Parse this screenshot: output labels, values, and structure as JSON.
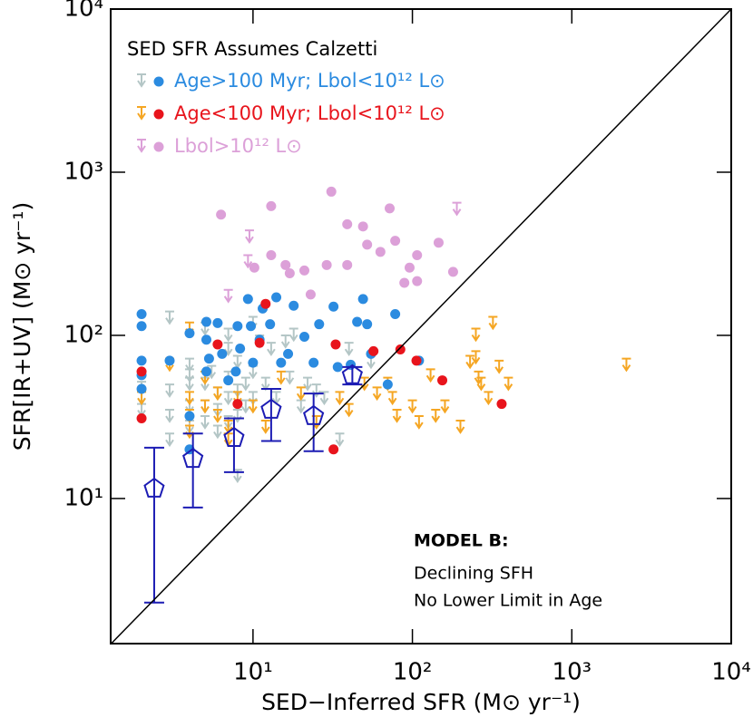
{
  "chart_data": {
    "type": "scatter",
    "log_x": true,
    "log_y": true,
    "one_to_one_line": true,
    "xlabel": "SED−Inferred SFR (M⊙ yr⁻¹)",
    "ylabel": "SFR[IR+UV] (M⊙ yr⁻¹)",
    "xlim": [
      1.28,
      10000
    ],
    "ylim": [
      1.29,
      10000
    ],
    "xticks": [
      {
        "value": 10,
        "label": "10¹"
      },
      {
        "value": 100,
        "label": "10²"
      },
      {
        "value": 1000,
        "label": "10³"
      },
      {
        "value": 10000,
        "label": "10⁴"
      }
    ],
    "yticks": [
      {
        "value": 10,
        "label": "10¹"
      },
      {
        "value": 100,
        "label": "10²"
      },
      {
        "value": 1000,
        "label": "10³"
      },
      {
        "value": 10000,
        "label": "10⁴"
      }
    ],
    "legend_title": "SED SFR Assumes Calzetti",
    "legend_position": "upper left",
    "annotations": [
      "MODEL B:",
      "Declining SFH",
      "No Lower Limit in Age"
    ],
    "series": [
      {
        "name": "Age>100 Myr; Lbol<10¹² L⊙",
        "color": "#2b8be0",
        "x": [
          2,
          2,
          2,
          2,
          2,
          3,
          4,
          4,
          4,
          5.1,
          5.1,
          5.3,
          5.1,
          6,
          6.4,
          7,
          8,
          8.3,
          7.8,
          9.3,
          9.7,
          10,
          11,
          11.5,
          12.8,
          14,
          15,
          16.6,
          18,
          21,
          24,
          26,
          32,
          34,
          41,
          45,
          49,
          52,
          55,
          70,
          78,
          110
        ],
        "values": [
          135,
          114,
          70,
          57,
          47,
          70,
          103,
          32,
          20,
          121,
          94,
          72,
          60,
          119,
          77,
          53,
          114,
          83,
          60,
          167,
          114,
          68,
          94,
          146,
          117,
          171,
          68,
          77,
          152,
          98,
          68,
          117,
          150,
          64,
          66,
          121,
          167,
          117,
          77,
          50,
          135,
          70
        ],
        "limits": {
          "color": "#b4c6c6",
          "x": [
            2,
            2,
            2,
            3,
            3,
            3,
            3,
            4,
            4,
            4,
            4,
            4,
            5,
            5,
            5,
            5,
            5.5,
            6,
            6,
            6,
            7,
            7,
            7,
            7,
            7,
            8,
            8,
            8,
            8,
            9,
            9,
            10,
            10,
            10,
            11,
            12,
            13,
            14,
            16,
            17,
            18,
            20,
            22,
            25,
            28,
            35,
            40,
            55
          ],
          "values": [
            45,
            38,
            52,
            140,
            50,
            35,
            25,
            40,
            55,
            30,
            62,
            72,
            120,
            55,
            40,
            32,
            65,
            48,
            38,
            28,
            110,
            90,
            60,
            45,
            32,
            75,
            50,
            35,
            15,
            55,
            40,
            130,
            65,
            45,
            100,
            55,
            90,
            45,
            100,
            60,
            110,
            40,
            55,
            50,
            45,
            25,
            90,
            75
          ]
        }
      },
      {
        "name": "Age<100 Myr; Lbol<10¹² L⊙",
        "color": "#e8141c",
        "x": [
          2,
          2,
          6,
          8,
          11,
          12,
          33,
          32,
          57,
          84,
          106,
          154,
          363
        ],
        "values": [
          60,
          31,
          88,
          38,
          90,
          156,
          88,
          20,
          80,
          82,
          70,
          53,
          38
        ],
        "limits": {
          "color": "#f5a623",
          "x": [
            2,
            3,
            4,
            4,
            4,
            4,
            5,
            5,
            6,
            6,
            7,
            7,
            8,
            10,
            12,
            15,
            20,
            25,
            35,
            40,
            50,
            60,
            70,
            75,
            80,
            100,
            110,
            130,
            140,
            160,
            200,
            230,
            250,
            250,
            260,
            270,
            300,
            320,
            350,
            400,
            2200
          ],
          "values": [
            45,
            72,
            120,
            45,
            35,
            28,
            40,
            60,
            48,
            35,
            30,
            25,
            45,
            40,
            30,
            60,
            48,
            32,
            45,
            38,
            55,
            48,
            55,
            45,
            35,
            40,
            32,
            62,
            35,
            40,
            30,
            75,
            110,
            80,
            60,
            55,
            45,
            130,
            70,
            55,
            72
          ]
        }
      },
      {
        "name": "Lbol>10¹² L⊙",
        "color": "#dca0d8",
        "x": [
          6.3,
          13,
          31,
          39,
          49,
          72,
          10.2,
          13,
          16,
          17,
          21,
          29,
          39,
          52,
          63,
          78,
          107,
          96,
          89,
          107,
          146,
          180,
          23
        ],
        "values": [
          550,
          620,
          760,
          480,
          465,
          600,
          260,
          310,
          270,
          240,
          250,
          270,
          270,
          360,
          325,
          380,
          310,
          260,
          210,
          215,
          370,
          245,
          178
        ],
        "limits": {
          "color": "#dca0d8",
          "x": [
            9.5,
            9.3,
            7,
            190
          ],
          "values": [
            440,
            310,
            190,
            650
          ]
        }
      },
      {
        "marker": "pentagon",
        "color": "#1c1cb4",
        "x": [
          2.4,
          4.2,
          7.6,
          13,
          24,
          42
        ],
        "values": [
          11.5,
          17.5,
          23.5,
          35,
          32,
          57
        ],
        "lower": [
          2.3,
          8.8,
          14.5,
          22.5,
          19.5,
          50
        ],
        "upper": [
          20.5,
          25,
          31,
          47,
          44,
          64
        ]
      }
    ]
  }
}
